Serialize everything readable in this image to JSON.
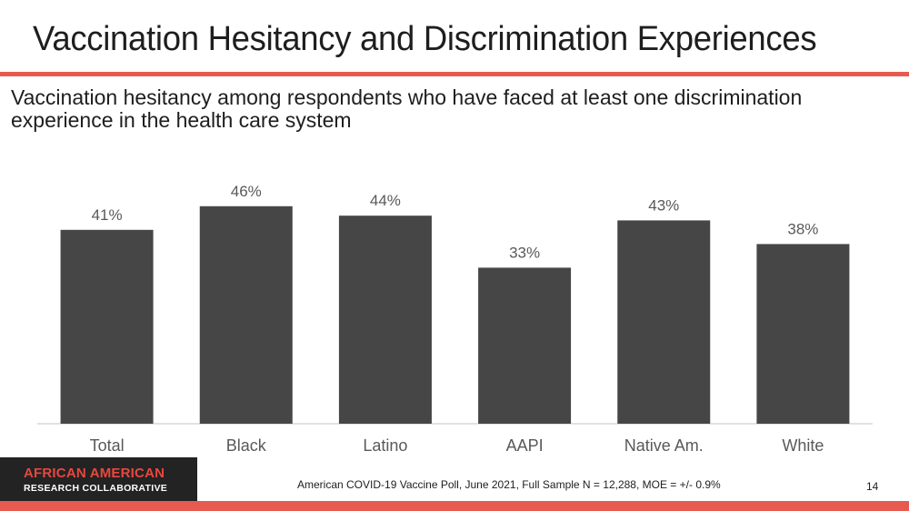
{
  "slide": {
    "title": "Vaccination Hesitancy and Discrimination Experiences",
    "subtitle": "Vaccination hesitancy among respondents who have faced at least one discrimination experience in the health care system",
    "accent_color": "#e75a50",
    "bar_color": "#464646",
    "page_number": "14",
    "source_note": "American COVID-19 Vaccine Poll, June 2021, Full Sample N = 12,288, MOE = +/- 0.9%"
  },
  "logo": {
    "line1": "AFRICAN AMERICAN",
    "line2": "RESEARCH COLLABORATIVE"
  },
  "chart_data": {
    "type": "bar",
    "title": "Vaccination hesitancy among respondents who have faced at least one discrimination experience in the health care system",
    "xlabel": "",
    "ylabel": "",
    "categories": [
      "Total",
      "Black",
      "Latino",
      "AAPI",
      "Native Am.",
      "White"
    ],
    "values": [
      41,
      46,
      44,
      33,
      43,
      38
    ],
    "value_labels": [
      "41%",
      "46%",
      "44%",
      "33%",
      "43%",
      "38%"
    ],
    "unit": "%",
    "ylim": [
      0,
      50
    ],
    "grid": false,
    "legend": "none"
  }
}
